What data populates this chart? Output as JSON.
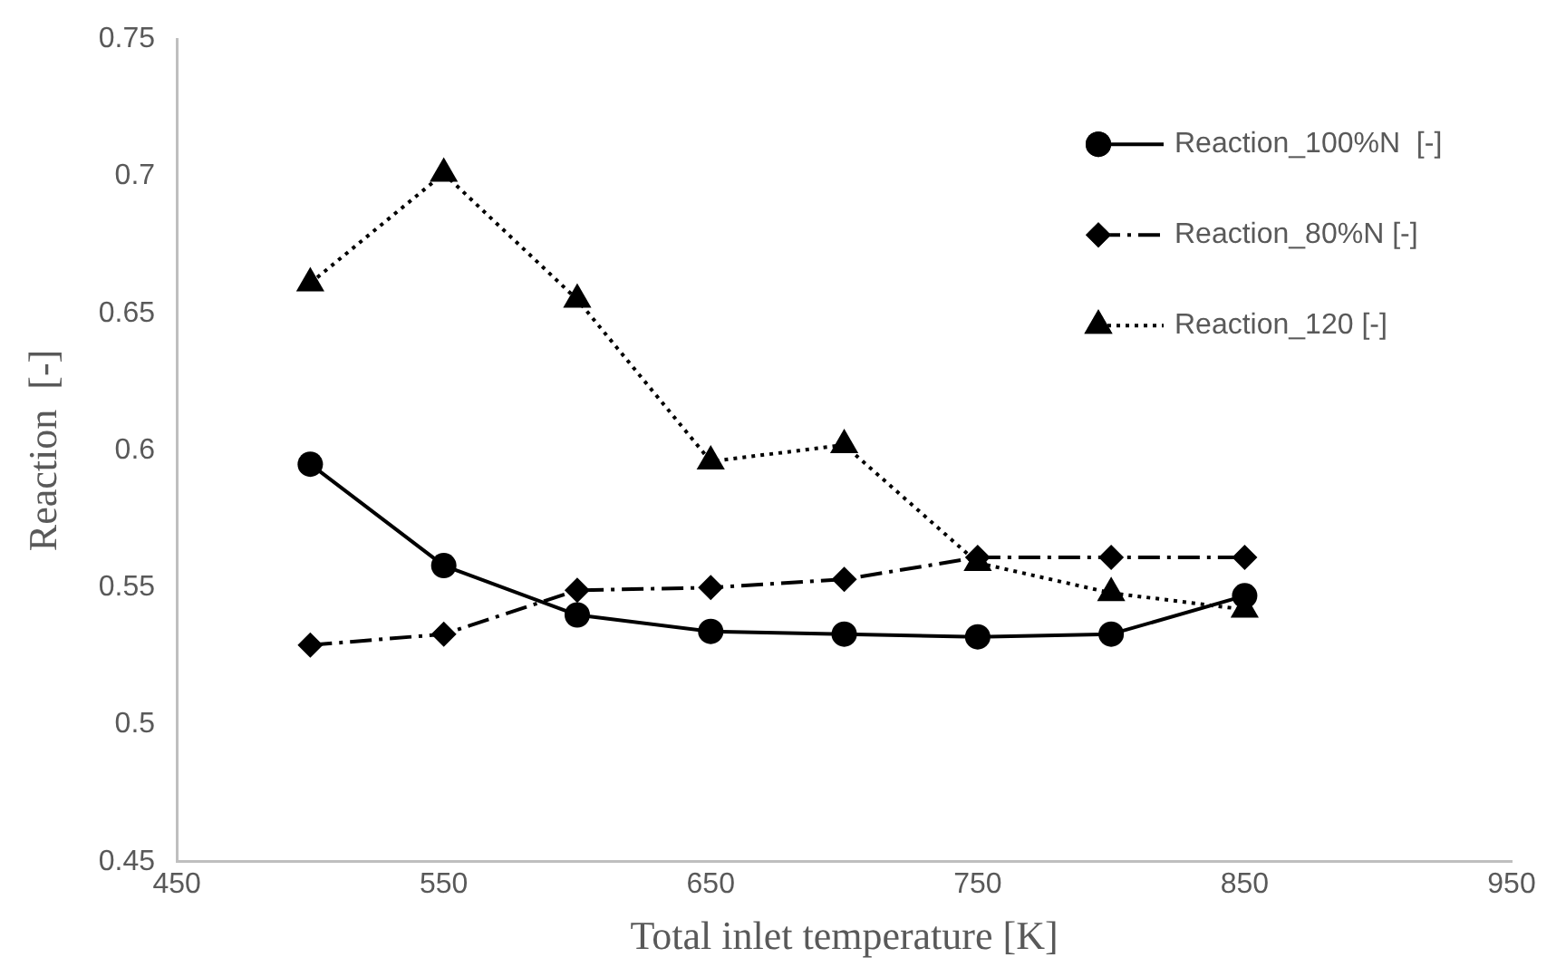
{
  "chart_data": {
    "type": "line",
    "xlabel": "Total inlet temperature [K]",
    "ylabel": "Reaction  [-]",
    "x": [
      500,
      550,
      600,
      650,
      700,
      750,
      800,
      850
    ],
    "series": [
      {
        "name": "Reaction_100%N  [-]",
        "color": "#000000",
        "marker": "circle",
        "line_style": "solid",
        "values": [
          0.595,
          0.558,
          0.54,
          0.534,
          0.533,
          0.532,
          0.533,
          0.547
        ]
      },
      {
        "name": "Reaction_80%N [-]",
        "color": "#000000",
        "marker": "diamond",
        "line_style": "dashed",
        "values": [
          0.529,
          0.533,
          0.549,
          0.55,
          0.553,
          0.561,
          0.561,
          0.561
        ]
      },
      {
        "name": "Reaction_120 [-]",
        "color": "#000000",
        "marker": "triangle",
        "line_style": "dotted",
        "values": [
          0.661,
          0.701,
          0.655,
          0.596,
          0.602,
          0.559,
          0.548,
          0.542
        ]
      }
    ],
    "xlim": [
      450,
      950
    ],
    "xticks": [
      450,
      550,
      650,
      750,
      850,
      950
    ],
    "ylim": [
      0.45,
      0.75
    ],
    "yticks": [
      0.45,
      0.5,
      0.55,
      0.6,
      0.65,
      0.7,
      0.75
    ],
    "grid": false,
    "legend": "top right"
  }
}
